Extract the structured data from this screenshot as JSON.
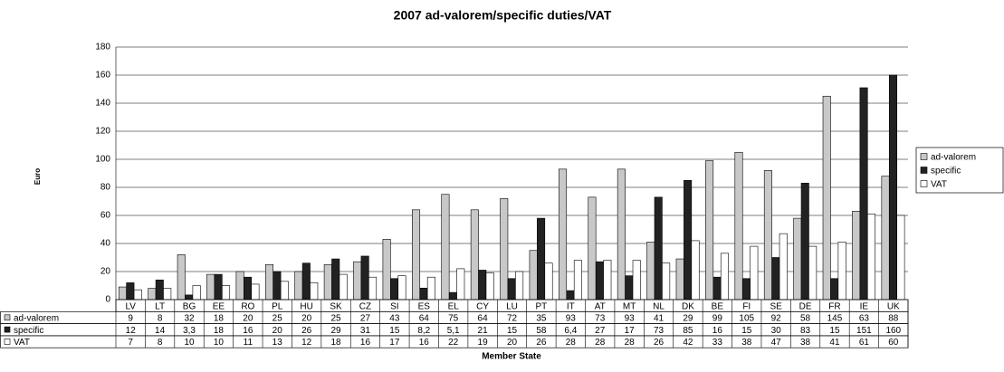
{
  "chart_data": {
    "type": "bar",
    "title": "2007 ad-valorem/specific duties/VAT",
    "y_label": "Euro",
    "x_label": "Member State",
    "categories": [
      "LV",
      "LT",
      "BG",
      "EE",
      "RO",
      "PL",
      "HU",
      "SK",
      "CZ",
      "SI",
      "ES",
      "EL",
      "CY",
      "LU",
      "PT",
      "IT",
      "AT",
      "MT",
      "NL",
      "DK",
      "BE",
      "FI",
      "SE",
      "DE",
      "FR",
      "IE",
      "UK"
    ],
    "series": [
      {
        "name": "ad-valorem",
        "color": "#c8c8c8",
        "values": [
          9,
          8,
          32,
          18,
          20,
          25,
          20,
          25,
          27,
          43,
          64,
          75,
          64,
          72,
          35,
          93,
          73,
          93,
          41,
          29,
          99,
          105,
          92,
          58,
          145,
          63,
          88
        ]
      },
      {
        "name": "specific",
        "color": "#222222",
        "values": [
          12,
          14,
          3.3,
          18,
          16,
          20,
          26,
          29,
          31,
          15,
          8.2,
          5.1,
          21,
          15,
          58,
          6.4,
          27,
          17,
          73,
          85,
          16,
          15,
          30,
          83,
          15,
          151,
          160
        ],
        "value_labels": [
          "12",
          "14",
          "3,3",
          "18",
          "16",
          "20",
          "26",
          "29",
          "31",
          "15",
          "8,2",
          "5,1",
          "21",
          "15",
          "58",
          "6,4",
          "27",
          "17",
          "73",
          "85",
          "16",
          "15",
          "30",
          "83",
          "15",
          "151",
          "160"
        ]
      },
      {
        "name": "VAT",
        "color": "#ffffff",
        "values": [
          7,
          8,
          10,
          10,
          11,
          13,
          12,
          18,
          16,
          17,
          16,
          22,
          19,
          20,
          26,
          28,
          28,
          28,
          26,
          42,
          33,
          38,
          47,
          38,
          41,
          61,
          60
        ]
      }
    ],
    "ylim": [
      0,
      180
    ],
    "yticks": [
      0,
      20,
      40,
      60,
      80,
      100,
      120,
      140,
      160,
      180
    ],
    "grid": true,
    "legend": "right"
  }
}
